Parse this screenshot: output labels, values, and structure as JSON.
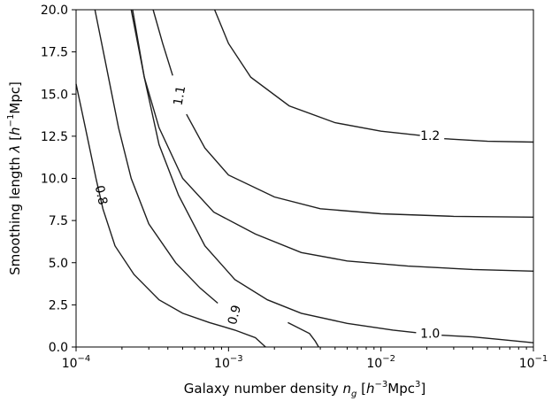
{
  "chart_data": {
    "type": "contour",
    "x_scale": "log",
    "xlim": [
      0.0001,
      0.1
    ],
    "ylim": [
      0.0,
      20.0
    ],
    "grid": false,
    "xlabel": {
      "main": "Galaxy number density ",
      "var": "n",
      "sub": "g",
      "unit_open": " [",
      "unit_h": "h",
      "unit_exp": "−3",
      "unit_mpc": "Mpc",
      "unit_mpc_exp": "3",
      "unit_close": "]"
    },
    "ylabel": {
      "main": "Smoothing length ",
      "var": "λ",
      "unit_open": " [",
      "unit_h": "h",
      "unit_exp": "−1",
      "unit_mpc": "Mpc",
      "unit_close": "]"
    },
    "x_ticks": [
      {
        "value": 0.0001,
        "base": "10",
        "exp": "−4"
      },
      {
        "value": 0.001,
        "base": "10",
        "exp": "−3"
      },
      {
        "value": 0.01,
        "base": "10",
        "exp": "−2"
      },
      {
        "value": 0.1,
        "base": "10",
        "exp": "−1"
      }
    ],
    "y_ticks": [
      {
        "value": 0.0,
        "label": "0.0"
      },
      {
        "value": 2.5,
        "label": "2.5"
      },
      {
        "value": 5.0,
        "label": "5.0"
      },
      {
        "value": 7.5,
        "label": "7.5"
      },
      {
        "value": 10.0,
        "label": "10.0"
      },
      {
        "value": 12.5,
        "label": "12.5"
      },
      {
        "value": 15.0,
        "label": "15.0"
      },
      {
        "value": 17.5,
        "label": "17.5"
      },
      {
        "value": 20.0,
        "label": "20.0"
      }
    ],
    "contours": [
      {
        "level_label": "0.8",
        "paths": [
          [
            [
              0.0001,
              15.6
            ],
            [
              0.000115,
              13.0
            ],
            [
              0.000135,
              10.0
            ],
            [
              0.00015,
              8.2
            ],
            [
              0.00018,
              6.0
            ],
            [
              0.00024,
              4.3
            ],
            [
              0.00035,
              2.8
            ],
            [
              0.0005,
              2.0
            ],
            [
              0.00075,
              1.45
            ],
            [
              0.0011,
              1.0
            ],
            [
              0.0015,
              0.55
            ],
            [
              0.00175,
              0.0
            ]
          ]
        ],
        "label_at": [
          0.000145,
          9.0
        ],
        "label_rotation": 78
      },
      {
        "level_label": "0.9",
        "paths": [
          [
            [
              0.000133,
              20.0
            ],
            [
              0.000155,
              17.0
            ],
            [
              0.00019,
              13.0
            ],
            [
              0.00023,
              10.0
            ],
            [
              0.0003,
              7.3
            ],
            [
              0.00045,
              5.0
            ],
            [
              0.00065,
              3.5
            ],
            [
              0.00085,
              2.6
            ]
          ],
          [
            [
              0.00245,
              1.45
            ],
            [
              0.0034,
              0.8
            ],
            [
              0.0037,
              0.35
            ],
            [
              0.0039,
              0.0
            ]
          ]
        ],
        "label_at": [
          0.0011,
          1.9
        ],
        "label_rotation": -75
      },
      {
        "level_label": "1.0",
        "paths": [
          [
            [
              0.000235,
              20.0
            ],
            [
              0.00028,
              16.0
            ],
            [
              0.00035,
              12.0
            ],
            [
              0.00047,
              9.0
            ],
            [
              0.0007,
              6.0
            ],
            [
              0.0011,
              4.0
            ],
            [
              0.0018,
              2.8
            ],
            [
              0.003,
              2.0
            ],
            [
              0.006,
              1.4
            ],
            [
              0.012,
              1.0
            ],
            [
              0.017,
              0.85
            ]
          ],
          [
            [
              0.025,
              0.7
            ],
            [
              0.04,
              0.6
            ],
            [
              0.06,
              0.45
            ],
            [
              0.1,
              0.25
            ]
          ]
        ],
        "label_at": [
          0.021,
          0.75
        ],
        "label_rotation": 0
      },
      {
        "level_label": "",
        "paths": [
          [
            [
              0.00023,
              20.0
            ],
            [
              0.00028,
              16.0
            ],
            [
              0.00035,
              13.0
            ],
            [
              0.0005,
              10.0
            ],
            [
              0.0008,
              8.0
            ],
            [
              0.0015,
              6.7
            ],
            [
              0.003,
              5.6
            ],
            [
              0.006,
              5.1
            ],
            [
              0.015,
              4.8
            ],
            [
              0.04,
              4.6
            ],
            [
              0.1,
              4.5
            ]
          ]
        ],
        "label_at": null,
        "label_rotation": 0
      },
      {
        "level_label": "1.1",
        "paths": [
          [
            [
              0.00032,
              20.0
            ],
            [
              0.00037,
              18.0
            ],
            [
              0.00043,
              16.1
            ]
          ],
          [
            [
              0.00053,
              13.8
            ],
            [
              0.0007,
              11.8
            ],
            [
              0.001,
              10.2
            ],
            [
              0.002,
              8.9
            ],
            [
              0.004,
              8.2
            ],
            [
              0.01,
              7.9
            ],
            [
              0.03,
              7.75
            ],
            [
              0.1,
              7.7
            ]
          ]
        ],
        "label_at": [
          0.00048,
          14.9
        ],
        "label_rotation": -80
      },
      {
        "level_label": "1.2",
        "paths": [
          [
            [
              0.00081,
              20.0
            ],
            [
              0.001,
              18.0
            ],
            [
              0.0014,
              16.0
            ],
            [
              0.0025,
              14.3
            ],
            [
              0.005,
              13.3
            ],
            [
              0.01,
              12.8
            ],
            [
              0.018,
              12.55
            ]
          ],
          [
            [
              0.026,
              12.35
            ],
            [
              0.05,
              12.2
            ],
            [
              0.1,
              12.15
            ]
          ]
        ],
        "label_at": [
          0.021,
          12.5
        ],
        "label_rotation": 0
      }
    ]
  }
}
